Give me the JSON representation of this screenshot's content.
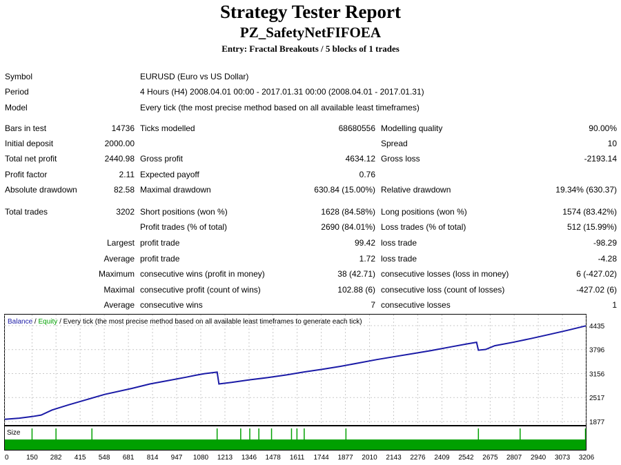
{
  "header": {
    "title": "Strategy Tester Report",
    "expert": "PZ_SafetyNetFIFOEA",
    "entry": "Entry: Fractal Breakouts / 5 blocks of 1 trades"
  },
  "settings": {
    "symbol_label": "Symbol",
    "symbol_value": "EURUSD (Euro vs US Dollar)",
    "period_label": "Period",
    "period_value": "4 Hours (H4) 2008.04.01 00:00 - 2017.01.31 00:00 (2008.04.01 - 2017.01.31)",
    "model_label": "Model",
    "model_value": "Every tick (the most precise method based on all available least timeframes)"
  },
  "stats": {
    "bars_label": "Bars in test",
    "bars_value": "14736",
    "ticks_label": "Ticks modelled",
    "ticks_value": "68680556",
    "quality_label": "Modelling quality",
    "quality_value": "90.00%",
    "deposit_label": "Initial deposit",
    "deposit_value": "2000.00",
    "spread_label": "Spread",
    "spread_value": "10",
    "netprofit_label": "Total net profit",
    "netprofit_value": "2440.98",
    "grossprofit_label": "Gross profit",
    "grossprofit_value": "4634.12",
    "grossloss_label": "Gross loss",
    "grossloss_value": "-2193.14",
    "pf_label": "Profit factor",
    "pf_value": "2.11",
    "payoff_label": "Expected payoff",
    "payoff_value": "0.76",
    "absdd_label": "Absolute drawdown",
    "absdd_value": "82.58",
    "maxdd_label": "Maximal drawdown",
    "maxdd_value": "630.84 (15.00%)",
    "reldd_label": "Relative drawdown",
    "reldd_value": "19.34% (630.37)",
    "trades_label": "Total trades",
    "trades_value": "3202",
    "short_label": "Short positions (won %)",
    "short_value": "1628 (84.58%)",
    "long_label": "Long positions (won %)",
    "long_value": "1574 (83.42%)",
    "ptrades_label": "Profit trades (% of total)",
    "ptrades_value": "2690 (84.01%)",
    "ltrades_label": "Loss trades (% of total)",
    "ltrades_value": "512 (15.99%)",
    "largest_label": "Largest",
    "largest_pt_label": "profit trade",
    "largest_pt_value": "99.42",
    "largest_lt_label": "loss trade",
    "largest_lt_value": "-98.29",
    "average_label": "Average",
    "average_pt_label": "profit trade",
    "average_pt_value": "1.72",
    "average_lt_label": "loss trade",
    "average_lt_value": "-4.28",
    "maximum_label": "Maximum",
    "max_cw_label": "consecutive wins (profit in money)",
    "max_cw_value": "38 (42.71)",
    "max_cl_label": "consecutive losses (loss in money)",
    "max_cl_value": "6 (-427.02)",
    "maximal_label": "Maximal",
    "maxl_cp_label": "consecutive profit (count of wins)",
    "maxl_cp_value": "102.88 (6)",
    "maxl_cl_label": "consecutive loss (count of losses)",
    "maxl_cl_value": "-427.02 (6)",
    "average2_label": "Average",
    "avg_cw_label": "consecutive wins",
    "avg_cw_value": "7",
    "avg_cl_label": "consecutive losses",
    "avg_cl_value": "1"
  },
  "chart_data": {
    "type": "line",
    "legend": [
      "Balance",
      "Equity"
    ],
    "legend_suffix": "/ Every tick (the most precise method based on all available least timeframes to generate each tick)",
    "size_label": "Size",
    "colors": {
      "balance": "#1a1aa6",
      "equity": "#00a000",
      "size_bar": "#00a000",
      "grid": "#c8c8c8"
    },
    "y_ticks": [
      4435,
      3796,
      3156,
      2517,
      1877
    ],
    "ylim": [
      1877,
      4435
    ],
    "x_ticks": [
      0,
      150,
      282,
      415,
      548,
      681,
      814,
      947,
      1080,
      1213,
      1346,
      1478,
      1611,
      1744,
      1877,
      2010,
      2143,
      2276,
      2409,
      2542,
      2675,
      2807,
      2940,
      3073,
      3206
    ],
    "xlim": [
      0,
      3202
    ],
    "series": [
      {
        "name": "Balance",
        "x": [
          0,
          80,
          150,
          200,
          260,
          290,
          350,
          450,
          550,
          700,
          800,
          900,
          1000,
          1050,
          1100,
          1170,
          1180,
          1250,
          1350,
          1450,
          1550,
          1650,
          1750,
          1850,
          1950,
          2050,
          2150,
          2250,
          2350,
          2450,
          2550,
          2600,
          2610,
          2650,
          2700,
          2800,
          2900,
          3000,
          3100,
          3202
        ],
        "y": [
          1937,
          1967,
          2010,
          2050,
          2185,
          2230,
          2320,
          2460,
          2600,
          2760,
          2880,
          2970,
          3060,
          3110,
          3155,
          3195,
          2880,
          2920,
          2990,
          3050,
          3120,
          3200,
          3270,
          3350,
          3440,
          3530,
          3610,
          3690,
          3770,
          3860,
          3950,
          3990,
          3780,
          3800,
          3900,
          3990,
          4090,
          4200,
          4310,
          4430
        ]
      }
    ],
    "size_markers": [
      150,
      282,
      480,
      1170,
      1300,
      1350,
      1400,
      1470,
      1580,
      1610,
      1650,
      1880,
      2610,
      2840,
      3200
    ]
  }
}
